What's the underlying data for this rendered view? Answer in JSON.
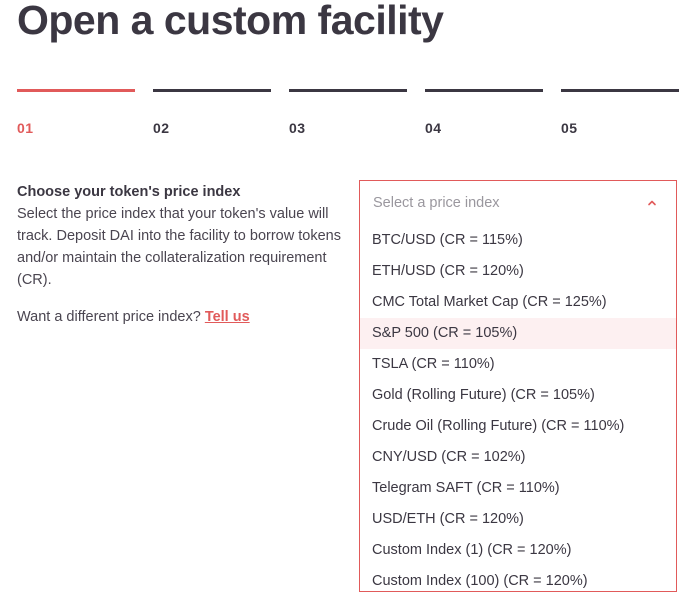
{
  "page": {
    "title": "Open a custom facility"
  },
  "steps": [
    {
      "label": "01",
      "active": true
    },
    {
      "label": "02",
      "active": false
    },
    {
      "label": "03",
      "active": false
    },
    {
      "label": "04",
      "active": false
    },
    {
      "label": "05",
      "active": false
    }
  ],
  "intro": {
    "heading": "Choose your token's price index",
    "description": "Select the price index that your token's value will track. Deposit DAI into the facility to borrow tokens and/or maintain the collateralization requirement (CR).",
    "contact_prompt": "Want a different price index?",
    "contact_link": "Tell us"
  },
  "price_index_select": {
    "placeholder": "Select a price index",
    "expanded": true,
    "chevron_icon": "chevron-up-icon",
    "hovered_option": "S&P 500 (CR = 105%)",
    "options": [
      "BTC/USD (CR = 115%)",
      "ETH/USD (CR = 120%)",
      "CMC Total Market Cap (CR = 125%)",
      "S&P 500 (CR = 105%)",
      "TSLA (CR = 110%)",
      "Gold (Rolling Future) (CR = 105%)",
      "Crude Oil (Rolling Future) (CR = 110%)",
      "CNY/USD (CR = 102%)",
      "Telegram SAFT (CR = 110%)",
      "USD/ETH (CR = 120%)",
      "Custom Index (1) (CR = 120%)",
      "Custom Index (100) (CR = 120%)"
    ]
  },
  "colors": {
    "accent": "#e15a5a",
    "text": "#3b3742",
    "hover_bg": "#fdf0f1",
    "placeholder": "#9a979e"
  }
}
